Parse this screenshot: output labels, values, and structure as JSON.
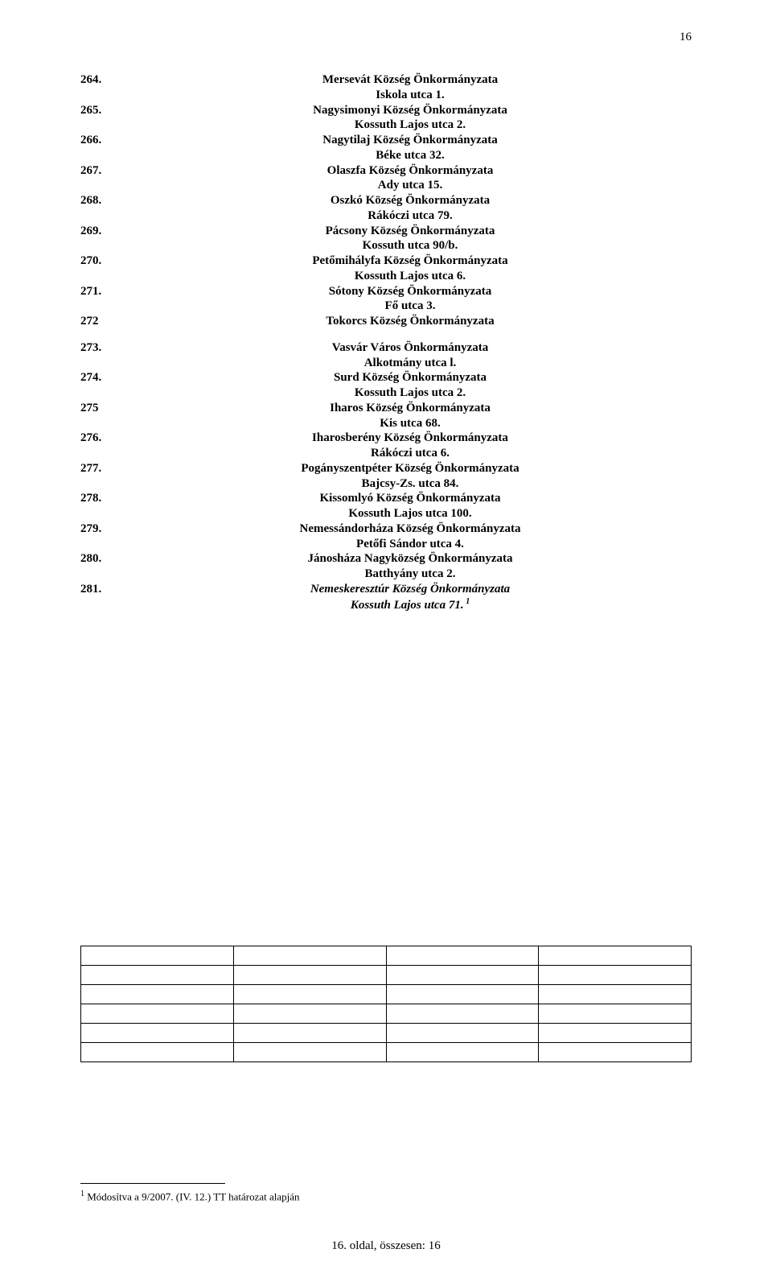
{
  "page_number_top": "16",
  "entries": [
    {
      "num": "264.",
      "name": "Mersevát Község Önkormányzata",
      "addr": "Iskola utca 1."
    },
    {
      "num": "265.",
      "name": "Nagysimonyi Község Önkormányzata",
      "addr": "Kossuth Lajos utca 2."
    },
    {
      "num": "266.",
      "name": "Nagytilaj Község Önkormányzata",
      "addr": "Béke utca 32."
    },
    {
      "num": "267.",
      "name": "Olaszfa Község Önkormányzata",
      "addr": "Ady utca 15."
    },
    {
      "num": "268.",
      "name": "Oszkó Község Önkormányzata",
      "addr": "Rákóczi utca 79."
    },
    {
      "num": "269.",
      "name": "Pácsony Község Önkormányzata",
      "addr": "Kossuth utca 90/b."
    },
    {
      "num": "270.",
      "name": "Petőmihályfa Község Önkormányzata",
      "addr": "Kossuth Lajos utca 6."
    },
    {
      "num": "271.",
      "name": "Sótony Község Önkormányzata",
      "addr": "Fő utca 3."
    },
    {
      "num": "272",
      "name": "Tokorcs Község Önkormányzata",
      "addr": ""
    },
    {
      "gap": true
    },
    {
      "num": "273.",
      "name": "Vasvár Város Önkormányzata",
      "addr": "Alkotmány utca l."
    },
    {
      "num": "274.",
      "name": "Surd Község Önkormányzata",
      "addr": "Kossuth Lajos utca 2."
    },
    {
      "num": "275",
      "name": "Iharos Község Önkormányzata",
      "addr": "Kis utca 68."
    },
    {
      "num": "276.",
      "name": "Iharosberény Község Önkormányzata",
      "addr": "Rákóczi utca 6."
    },
    {
      "num": "277.",
      "name": "Pogányszentpéter Község Önkormányzata",
      "addr": "Bajcsy-Zs. utca 84."
    },
    {
      "num": "278.",
      "name": "Kissomlyó Község Önkormányzata",
      "addr": "Kossuth Lajos utca 100."
    },
    {
      "num": "279.",
      "name": "Nemessándorháza Község Önkormányzata",
      "addr": "Petőfi Sándor utca 4."
    },
    {
      "num": "280.",
      "name": "Jánosháza Nagyközség Önkormányzata",
      "addr": "Batthyány utca 2."
    },
    {
      "num": "281.",
      "name": "Nemeskeresztúr Község Önkormányzata",
      "addr": "Kossuth Lajos utca 71.",
      "italic": true,
      "sup": "1"
    }
  ],
  "table": {
    "rows": 6,
    "cols": 4
  },
  "footnote": {
    "num": "1",
    "text": "Módosítva a 9/2007. (IV. 12.) TT határozat alapján"
  },
  "footer": "16. oldal, összesen: 16",
  "colors": {
    "text": "#000000",
    "bg": "#ffffff",
    "border": "#000000"
  },
  "fonts": {
    "body_pt": 15,
    "footnote_pt": 13,
    "sup_pt": 10
  }
}
